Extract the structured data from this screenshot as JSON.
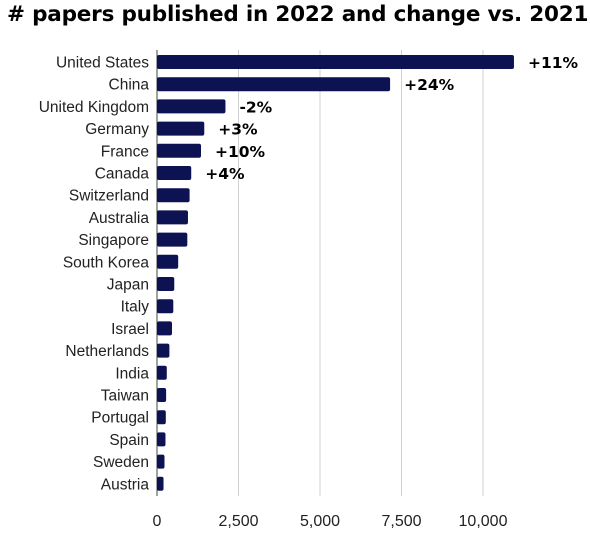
{
  "chart_data": {
    "type": "bar",
    "orientation": "horizontal",
    "title": "# papers published in 2022 and change vs. 2021",
    "xlabel": "",
    "ylabel": "",
    "xlim": [
      0,
      12500
    ],
    "xticks": [
      0,
      2500,
      5000,
      7500,
      10000
    ],
    "xtick_labels": [
      "0",
      "2,500",
      "5,000",
      "7,500",
      "10,000"
    ],
    "grid": true,
    "categories": [
      "United States",
      "China",
      "United Kingdom",
      "Germany",
      "France",
      "Canada",
      "Switzerland",
      "Australia",
      "Singapore",
      "South Korea",
      "Japan",
      "Italy",
      "Israel",
      "Netherlands",
      "India",
      "Taiwan",
      "Portugal",
      "Spain",
      "Sweden",
      "Austria"
    ],
    "values": [
      10950,
      7150,
      2100,
      1450,
      1350,
      1050,
      1000,
      950,
      930,
      650,
      530,
      500,
      460,
      380,
      300,
      280,
      270,
      260,
      230,
      200
    ],
    "data_labels": [
      "+11%",
      "+24%",
      "-2%",
      "+3%",
      "+10%",
      "+4%",
      "",
      "",
      "",
      "",
      "",
      "",
      "",
      "",
      "",
      "",
      "",
      "",
      "",
      ""
    ],
    "bar_color": "#0c1252",
    "grid_color": "#d0d0d0"
  }
}
